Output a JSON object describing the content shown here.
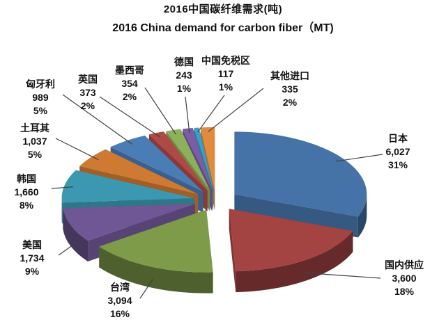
{
  "title": {
    "line1": "2016中国碳纤维需求(吨)",
    "line2": "2016 China demand for carbon fiber（MT)"
  },
  "chart_data": {
    "type": "pie",
    "style": "3d-exploded",
    "start_angle": "12-oclock",
    "direction": "clockwise",
    "total": 19563,
    "legend_position": "none",
    "slices": [
      {
        "name": "日本",
        "value": 6027,
        "value_label": "6,027",
        "pct": "31%"
      },
      {
        "name": "国内供应",
        "value": 3600,
        "value_label": "3,600",
        "pct": "18%"
      },
      {
        "name": "台湾",
        "value": 3094,
        "value_label": "3,094",
        "pct": "16%"
      },
      {
        "name": "美国",
        "value": 1734,
        "value_label": "1,734",
        "pct": "9%"
      },
      {
        "name": "韩国",
        "value": 1660,
        "value_label": "1,660",
        "pct": "8%"
      },
      {
        "name": "土耳其",
        "value": 1037,
        "value_label": "1,037",
        "pct": "5%"
      },
      {
        "name": "匈牙利",
        "value": 989,
        "value_label": "989",
        "pct": "5%"
      },
      {
        "name": "英国",
        "value": 373,
        "value_label": "373",
        "pct": "2%"
      },
      {
        "name": "墨西哥",
        "value": 354,
        "value_label": "354",
        "pct": "2%"
      },
      {
        "name": "德国",
        "value": 243,
        "value_label": "243",
        "pct": "1%"
      },
      {
        "name": "中国免税区",
        "value": 117,
        "value_label": "117",
        "pct": "1%"
      },
      {
        "name": "其他进口",
        "value": 335,
        "value_label": "335",
        "pct": "2%"
      }
    ],
    "colors": [
      "#4572A7",
      "#A34442",
      "#7E9B49",
      "#6F5795",
      "#3B98B0",
      "#CE7A33",
      "#4A7CB5",
      "#AF4945",
      "#8DB05A",
      "#7A5DA5",
      "#35A0C9",
      "#E18B3F"
    ],
    "leader_line_color": "#404040",
    "text_color": "#111111"
  }
}
